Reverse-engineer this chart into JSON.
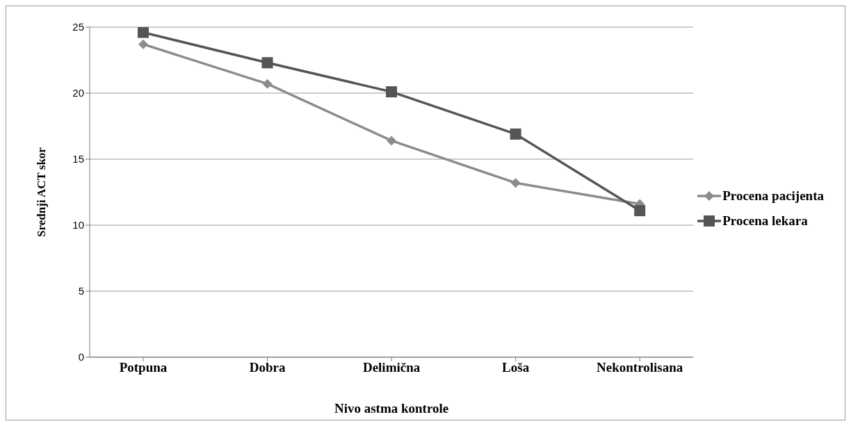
{
  "chart_data": {
    "type": "line",
    "xlabel": "Nivo astma kontrole",
    "ylabel": "Srednji ACT skor",
    "categories": [
      "Potpuna",
      "Dobra",
      "Delimična",
      "Loša",
      "Nekontrolisana"
    ],
    "series": [
      {
        "name": "Procena pacijenta",
        "color": "#8c8c8c",
        "marker": "diamond",
        "values": [
          23.7,
          20.7,
          16.4,
          13.2,
          11.6
        ]
      },
      {
        "name": "Procena lekara",
        "color": "#555555",
        "marker": "square",
        "values": [
          24.6,
          22.3,
          20.1,
          16.9,
          11.1
        ]
      }
    ],
    "ylim": [
      0,
      25
    ],
    "yticks": [
      0,
      5,
      10,
      15,
      20,
      25
    ],
    "grid": "y",
    "legend": "right"
  }
}
